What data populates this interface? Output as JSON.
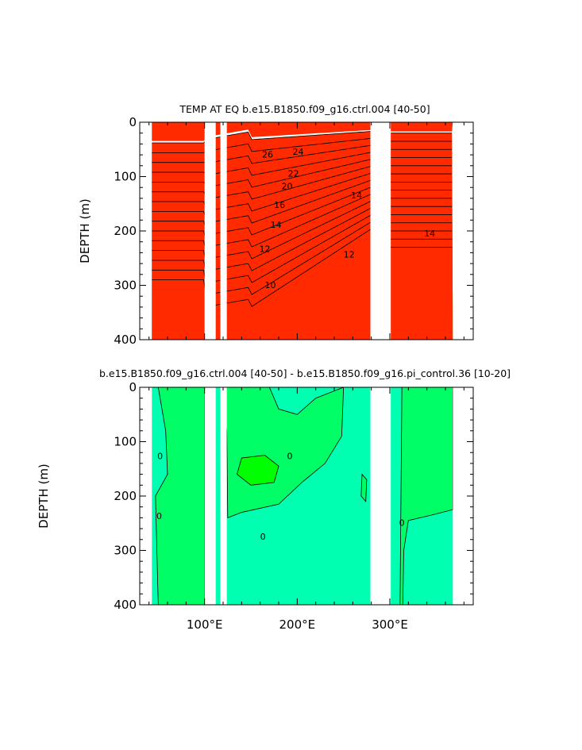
{
  "chart_data": [
    {
      "type": "heatmap",
      "title": "TEMP AT EQ b.e15.B1850.f09_g16.ctrl.004 [40-50]",
      "ylabel": "DEPTH (m)",
      "ylim": [
        0,
        400
      ],
      "xlim": [
        30,
        390
      ],
      "y_inverted": true,
      "xticks": [
        {
          "v": 100,
          "label": "100°E"
        },
        {
          "v": 200,
          "label": "200°E"
        },
        {
          "v": 300,
          "label": "300°E"
        }
      ],
      "yticks": [
        {
          "v": 0,
          "label": "0"
        },
        {
          "v": 100,
          "label": "100"
        },
        {
          "v": 200,
          "label": "200"
        },
        {
          "v": 300,
          "label": "300"
        },
        {
          "v": 400,
          "label": "400"
        }
      ],
      "contour_labels": [
        {
          "text": "26",
          "x": 168,
          "y": 65
        },
        {
          "text": "24",
          "x": 201,
          "y": 60
        },
        {
          "text": "22",
          "x": 196,
          "y": 100
        },
        {
          "text": "20",
          "x": 189,
          "y": 123
        },
        {
          "text": "16",
          "x": 181,
          "y": 158
        },
        {
          "text": "14",
          "x": 177,
          "y": 194
        },
        {
          "text": "14",
          "x": 264,
          "y": 140
        },
        {
          "text": "12",
          "x": 165,
          "y": 239
        },
        {
          "text": "12",
          "x": 256,
          "y": 249
        },
        {
          "text": "10",
          "x": 171,
          "y": 305
        },
        {
          "text": "14",
          "x": 343,
          "y": 210
        }
      ],
      "land_gaps": [
        [
          100,
          112
        ],
        [
          117,
          124
        ],
        [
          279,
          301
        ]
      ],
      "colors": {
        "levels": [
          "#0018ff",
          "#0055ff",
          "#0a8cf0",
          "#16b2ff",
          "#38d3ff",
          "#6ee9ff",
          "#00ffff",
          "#9dff34",
          "#00e650",
          "#ffff00",
          "#ffd300",
          "#ffb400",
          "#ff8f00",
          "#ff5b00",
          "#ff2a00",
          "#7a00ff"
        ]
      }
    },
    {
      "type": "heatmap",
      "title": "b.e15.B1850.f09_g16.ctrl.004 [40-50] - b.e15.B1850.f09_g16.pi_control.36 [10-20]",
      "ylabel": "DEPTH (m)",
      "ylim": [
        0,
        400
      ],
      "xlim": [
        30,
        390
      ],
      "y_inverted": true,
      "xticks": [
        {
          "v": 100,
          "label": "100°E"
        },
        {
          "v": 200,
          "label": "200°E"
        },
        {
          "v": 300,
          "label": "300°E"
        }
      ],
      "yticks": [
        {
          "v": 0,
          "label": "0"
        },
        {
          "v": 100,
          "label": "100"
        },
        {
          "v": 200,
          "label": "200"
        },
        {
          "v": 300,
          "label": "300"
        },
        {
          "v": 400,
          "label": "400"
        }
      ],
      "contour_labels": [
        {
          "text": "0",
          "x": 52,
          "y": 132
        },
        {
          "text": "0",
          "x": 51,
          "y": 242
        },
        {
          "text": "0",
          "x": 192,
          "y": 132
        },
        {
          "text": "0",
          "x": 163,
          "y": 280
        },
        {
          "text": "0",
          "x": 313,
          "y": 255
        }
      ],
      "land_gaps": [
        [
          100,
          112
        ],
        [
          117,
          124
        ],
        [
          279,
          301
        ]
      ],
      "colors": {
        "positive": "#00ff66",
        "negative": "#00ffb0",
        "mid": "#40ff50"
      }
    }
  ]
}
